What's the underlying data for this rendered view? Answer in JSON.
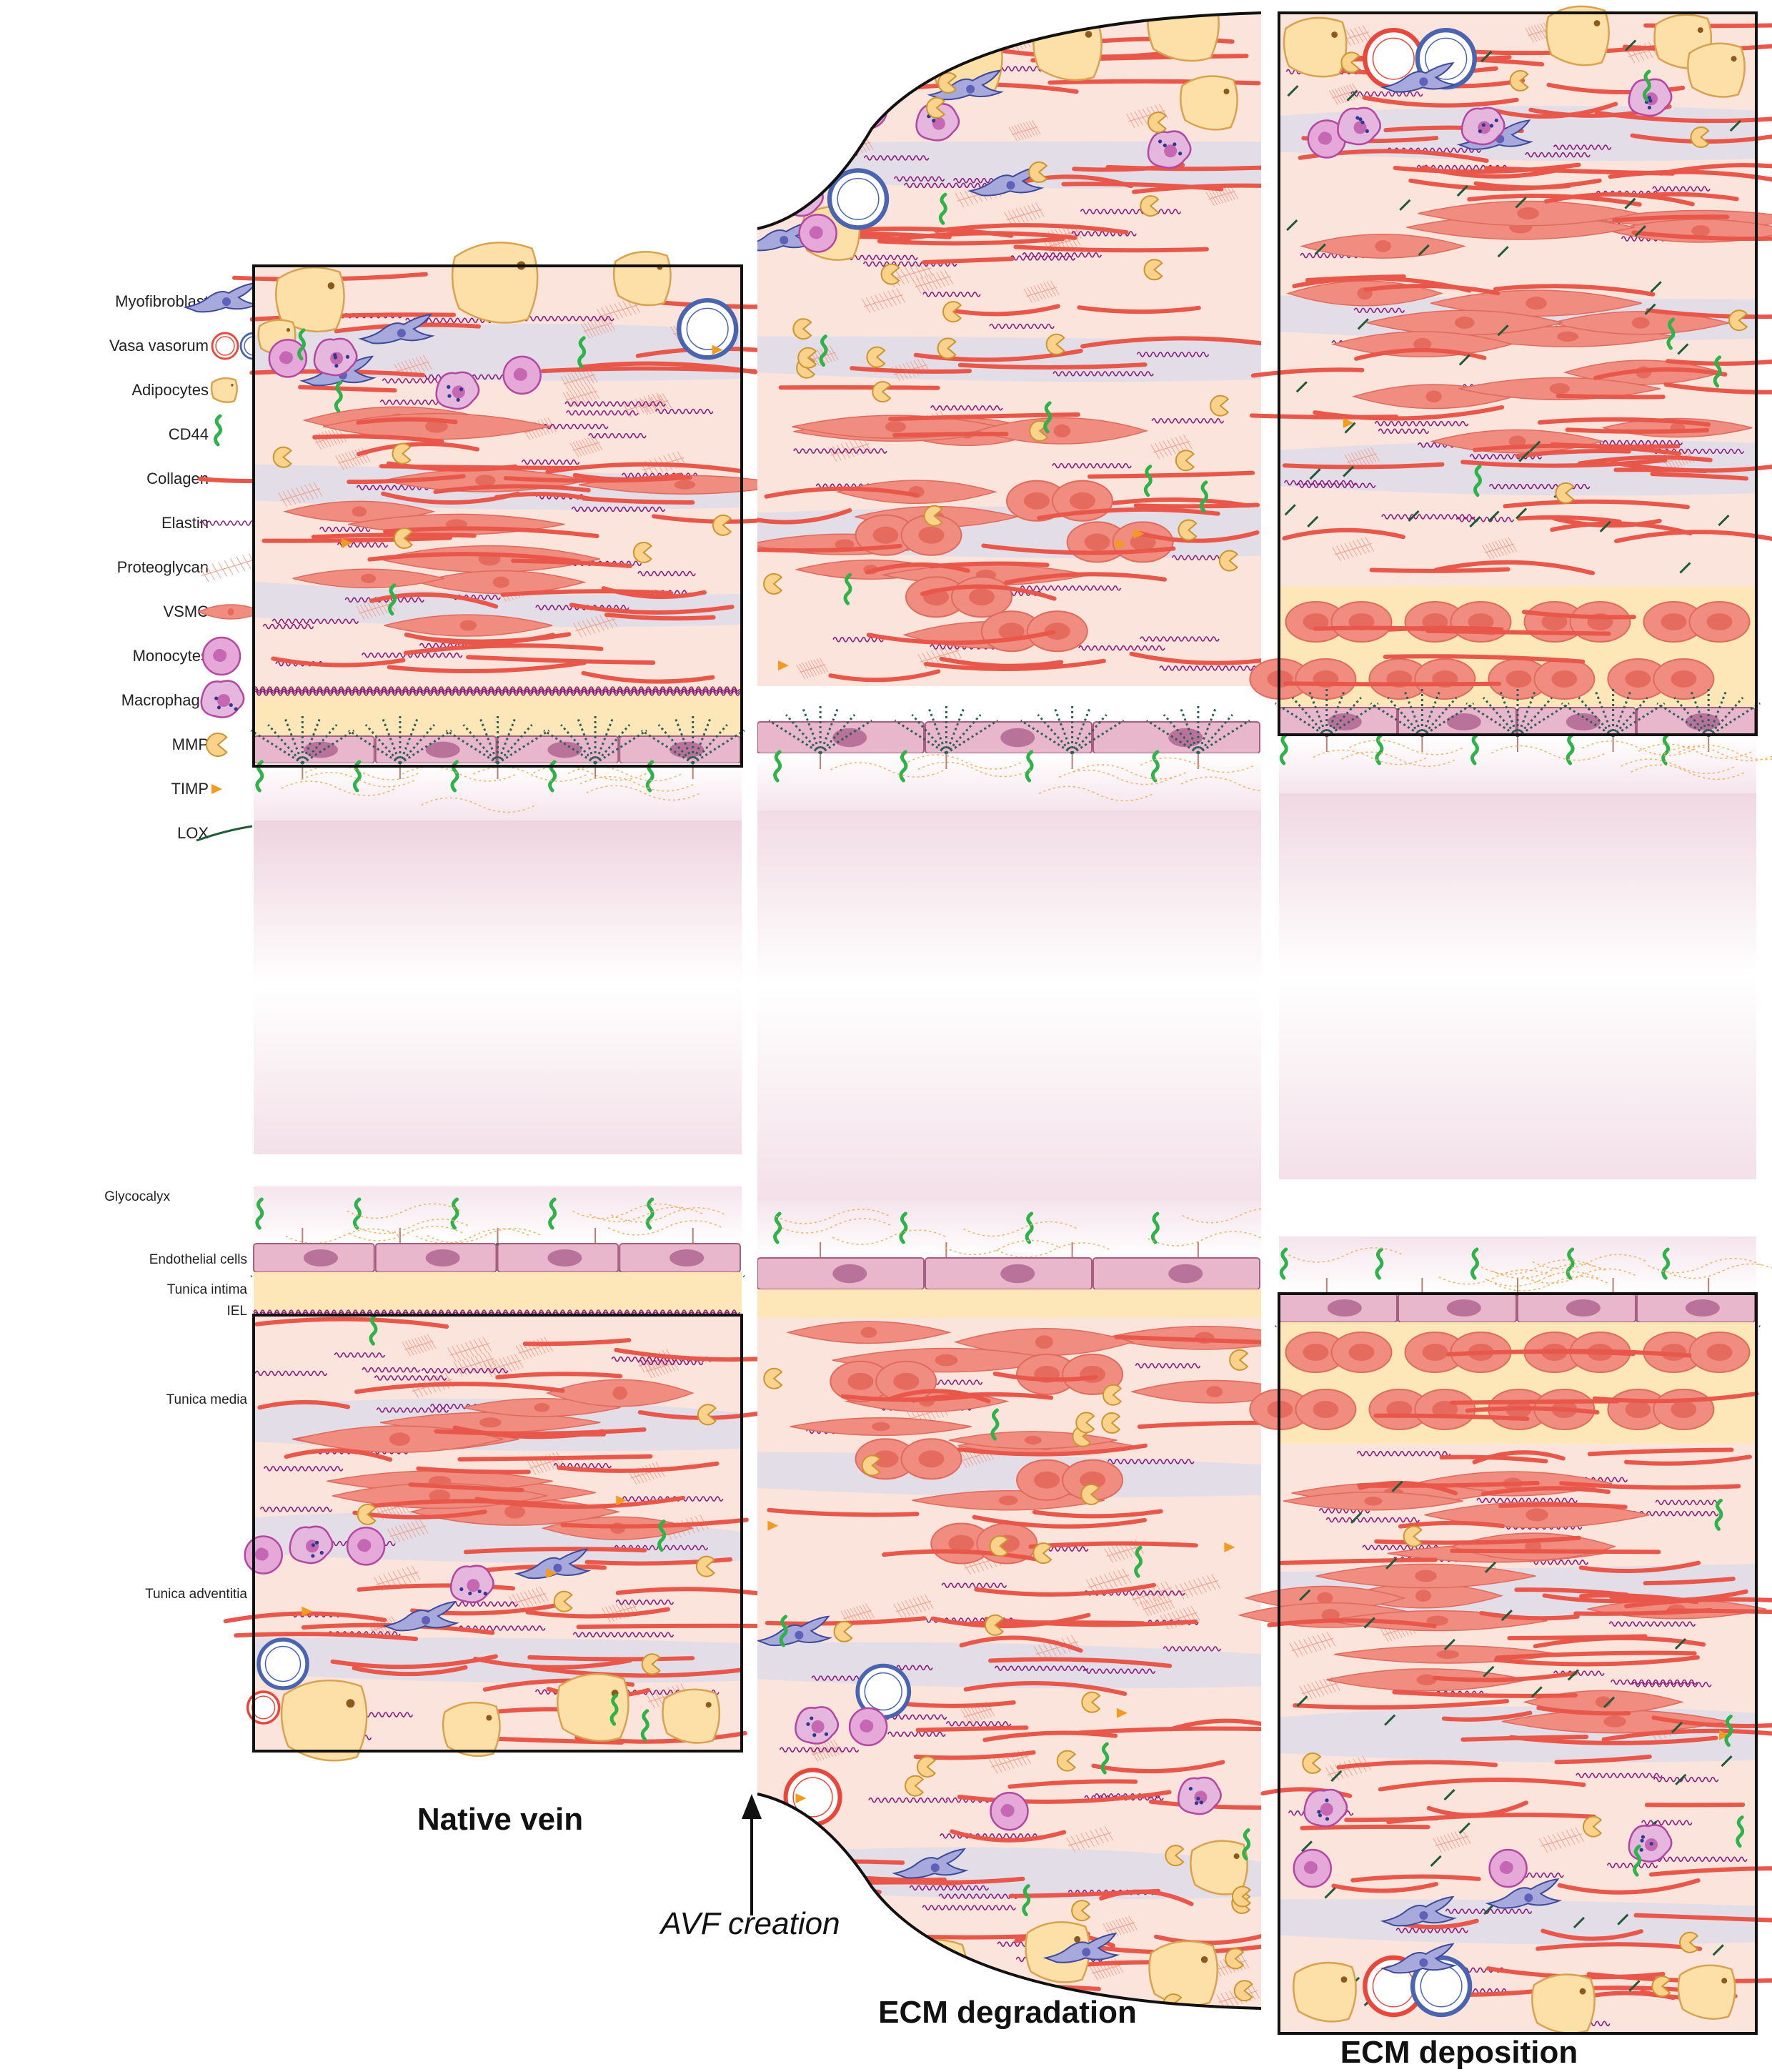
{
  "legend": {
    "items": [
      {
        "label": "Myofibroblast",
        "icon": "myofibroblast-icon"
      },
      {
        "label": "Vasa vasorum",
        "icon": "vasa-vasorum-icon"
      },
      {
        "label": "Adipocytes",
        "icon": "adipocyte-icon"
      },
      {
        "label": "CD44",
        "icon": "cd44-icon"
      },
      {
        "label": "Collagen",
        "icon": "collagen-icon"
      },
      {
        "label": "Elastin",
        "icon": "elastin-icon"
      },
      {
        "label": "Proteoglycan",
        "icon": "proteoglycan-icon"
      },
      {
        "label": "VSMC",
        "icon": "vsmc-icon"
      },
      {
        "label": "Monocytes",
        "icon": "monocyte-icon"
      },
      {
        "label": "Macrophage",
        "icon": "macrophage-icon"
      },
      {
        "label": "MMP",
        "icon": "mmp-icon"
      },
      {
        "label": "TIMP",
        "icon": "timp-icon"
      },
      {
        "label": "LOX",
        "icon": "lox-icon"
      }
    ]
  },
  "layers": {
    "glycocalyx": "Glycocalyx",
    "endothelial": "Endothelial cells",
    "intima": "Tunica intima",
    "iel": "IEL",
    "media": "Tunica media",
    "adventitia": "Tunica adventitia"
  },
  "panels": {
    "native": "Native vein",
    "degradation": "ECM degradation",
    "deposition": "ECM deposition"
  },
  "arrow_label": "AVF creation",
  "colors": {
    "adventitia_bg": "#fbe4dc",
    "collagen": "#e8574a",
    "elastin": "#8a1c7c",
    "vsmc": "#f08c80",
    "vsmc_nucleus": "#e66b5f",
    "intima": "#fde6b8",
    "endothelial": "#e8b7cc",
    "endothelial_nucleus": "#b9739a",
    "myofibroblast": "#a7a8dc",
    "vasa_red": "#e8473b",
    "vasa_blue": "#4a64b0",
    "adipocyte": "#fde0a8",
    "adipocyte_edge": "#d9a24e",
    "cd44": "#2db34a",
    "monocyte": "#e6a7d9",
    "macrophage": "#e5b6de",
    "mmp": "#fbd28c",
    "timp": "#f39a1f",
    "lox": "#1f5b3a",
    "lumen": "#f3dde6",
    "blue_matrix": "#cdd7ef"
  }
}
